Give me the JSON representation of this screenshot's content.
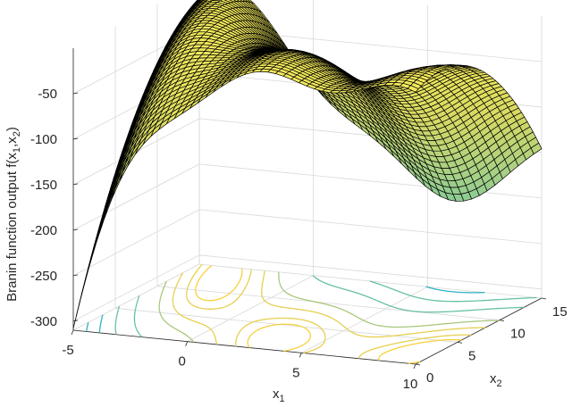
{
  "chart_data": {
    "type": "surface",
    "surface_function": "branin",
    "x1_range": [
      -5,
      10
    ],
    "x2_range": [
      0,
      15
    ],
    "z_range": [
      -310,
      0
    ],
    "z_transform": "negated branin output",
    "zlabel": "Branin function output f(x",
    "zlabel_sub1": "1",
    "zlabel_mid": ",x",
    "zlabel_sub2": "2",
    "zlabel_end": ")",
    "xlabel": "x",
    "xlabel_sub": "1",
    "ylabel": "x",
    "ylabel_sub": "2",
    "x_ticks": [
      "-5",
      "0",
      "5",
      "10"
    ],
    "y_ticks": [
      "0",
      "5",
      "10",
      "15"
    ],
    "z_ticks": [
      "-300",
      "-250",
      "-200",
      "-150",
      "-100",
      "-50"
    ],
    "z_tick_values": [
      -300,
      -250,
      -200,
      -150,
      -100,
      -50
    ],
    "contour_levels": [
      -250,
      -200,
      -150,
      -100,
      -50,
      -30,
      -15,
      -8
    ],
    "colormap": [
      "#3ab0de",
      "#5fc4a6",
      "#9fcf8a",
      "#d6d964",
      "#f5ea5a"
    ],
    "contour_colors": [
      "#2bb0c4",
      "#66c1a0",
      "#a8c77b",
      "#e6cf4f",
      "#f7d13c"
    ],
    "grid": true
  }
}
